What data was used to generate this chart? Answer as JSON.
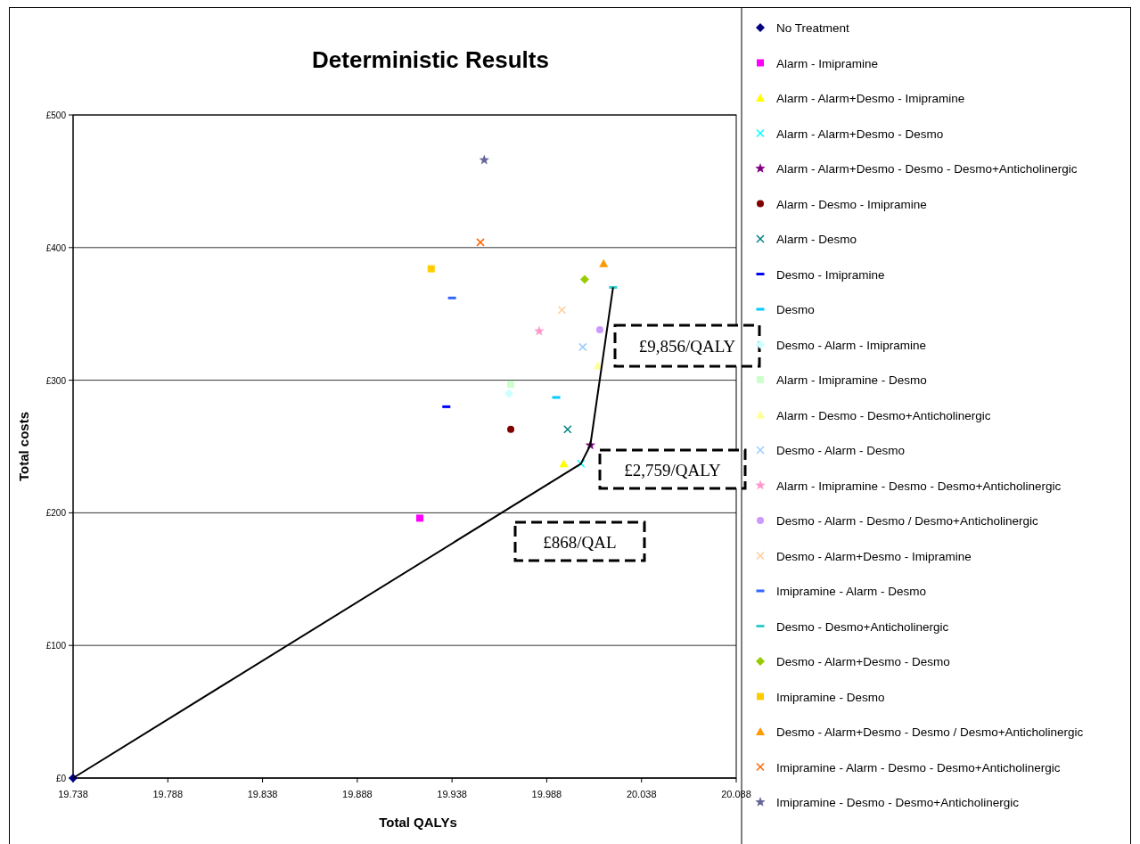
{
  "chart_data": {
    "type": "scatter",
    "title": "Deterministic Results",
    "xlabel": "Total QALYs",
    "ylabel": "Total costs",
    "xlim": [
      19.738,
      20.088
    ],
    "xticks": [
      19.738,
      19.788,
      19.838,
      19.888,
      19.938,
      19.988,
      20.038,
      20.088
    ],
    "ylim": [
      0,
      500
    ],
    "yticks": [
      {
        "value": 0,
        "label": "£0"
      },
      {
        "value": 100,
        "label": "£100"
      },
      {
        "value": 200,
        "label": "£200"
      },
      {
        "value": 300,
        "label": "£300"
      },
      {
        "value": 400,
        "label": "£400"
      },
      {
        "value": 500,
        "label": "£500"
      }
    ],
    "grid": "y",
    "legend": "right",
    "annotations": [
      "£9,856/QALY",
      "£2,759/QALY",
      "£868/QAL"
    ],
    "series": [
      {
        "name": "No Treatment",
        "color": "#000080",
        "marker": "diamond",
        "x": [
          19.738
        ],
        "values": [
          0
        ]
      },
      {
        "name": "Alarm - Imipramine",
        "color": "#ff00ff",
        "marker": "square",
        "x": [
          19.921
        ],
        "values": [
          196
        ]
      },
      {
        "name": "Alarm - Alarm+Desmo - Imipramine",
        "color": "#ffff00",
        "marker": "triangle",
        "x": [
          19.997
        ],
        "values": [
          237
        ]
      },
      {
        "name": "Alarm - Alarm+Desmo - Desmo",
        "color": "#00ffff",
        "marker": "cross",
        "x": [
          20.006
        ],
        "values": [
          237
        ]
      },
      {
        "name": "Alarm - Alarm+Desmo - Desmo - Desmo+Anticholinergic",
        "color": "#800080",
        "marker": "star",
        "x": [
          20.011
        ],
        "values": [
          251
        ]
      },
      {
        "name": "Alarm - Desmo - Imipramine",
        "color": "#800000",
        "marker": "circle",
        "x": [
          19.969
        ],
        "values": [
          263
        ]
      },
      {
        "name": "Alarm - Desmo",
        "color": "#008080",
        "marker": "cross",
        "x": [
          19.999
        ],
        "values": [
          263
        ]
      },
      {
        "name": "Desmo - Imipramine",
        "color": "#0000ff",
        "x": [
          19.935
        ],
        "values": [
          280
        ]
      },
      {
        "name": "Desmo",
        "color": "#00ccff",
        "x": [
          19.993
        ],
        "values": [
          287
        ]
      },
      {
        "name": "Desmo - Alarm - Imipramine",
        "color": "#ccffff",
        "marker": "diamond",
        "x": [
          19.968
        ],
        "values": [
          290
        ]
      },
      {
        "name": "Alarm - Imipramine - Desmo",
        "color": "#ccffcc",
        "marker": "square",
        "x": [
          19.969
        ],
        "values": [
          297
        ]
      },
      {
        "name": "Alarm - Desmo - Desmo+Anticholinergic",
        "color": "#ffff99",
        "marker": "triangle",
        "x": [
          20.015
        ],
        "values": [
          311
        ]
      },
      {
        "name": "Desmo - Alarm - Desmo",
        "color": "#99ccff",
        "marker": "cross",
        "x": [
          20.007
        ],
        "values": [
          325
        ]
      },
      {
        "name": "Alarm - Imipramine - Desmo - Desmo+Anticholinergic",
        "color": "#ff99cc",
        "marker": "star",
        "x": [
          19.984
        ],
        "values": [
          337
        ]
      },
      {
        "name": "Desmo - Alarm - Desmo / Desmo+Anticholinergic",
        "color": "#cc99ff",
        "marker": "circle",
        "x": [
          20.016
        ],
        "values": [
          338
        ]
      },
      {
        "name": "Desmo - Alarm+Desmo - Imipramine",
        "color": "#ffcc99",
        "marker": "cross",
        "x": [
          19.996
        ],
        "values": [
          353
        ]
      },
      {
        "name": "Imipramine - Alarm - Desmo",
        "color": "#3366ff",
        "x": [
          19.938
        ],
        "values": [
          362
        ]
      },
      {
        "name": "Desmo - Desmo+Anticholinergic",
        "color": "#33cccc",
        "x": [
          20.023
        ],
        "values": [
          370
        ]
      },
      {
        "name": "Desmo - Alarm+Desmo - Desmo",
        "color": "#99cc00",
        "marker": "diamond",
        "x": [
          20.008
        ],
        "values": [
          376
        ]
      },
      {
        "name": "Imipramine - Desmo",
        "color": "#ffcc00",
        "marker": "square",
        "x": [
          19.927
        ],
        "values": [
          384
        ]
      },
      {
        "name": "Desmo - Alarm+Desmo - Desmo / Desmo+Anticholinergic",
        "color": "#ff9900",
        "marker": "triangle",
        "x": [
          20.018
        ],
        "values": [
          388
        ]
      },
      {
        "name": "Imipramine - Alarm - Desmo - Desmo+Anticholinergic",
        "color": "#ff6600",
        "marker": "cross",
        "x": [
          19.953
        ],
        "values": [
          404
        ]
      },
      {
        "name": "Imipramine - Desmo - Desmo+Anticholinergic",
        "color": "#666699",
        "marker": "star",
        "x": [
          19.955
        ],
        "values": [
          466
        ]
      },
      {
        "type": "line",
        "color": "#000000",
        "marker": "none",
        "x": [
          19.738,
          20.006,
          20.011,
          20.023
        ],
        "values": [
          0,
          237,
          251,
          370
        ]
      }
    ]
  }
}
